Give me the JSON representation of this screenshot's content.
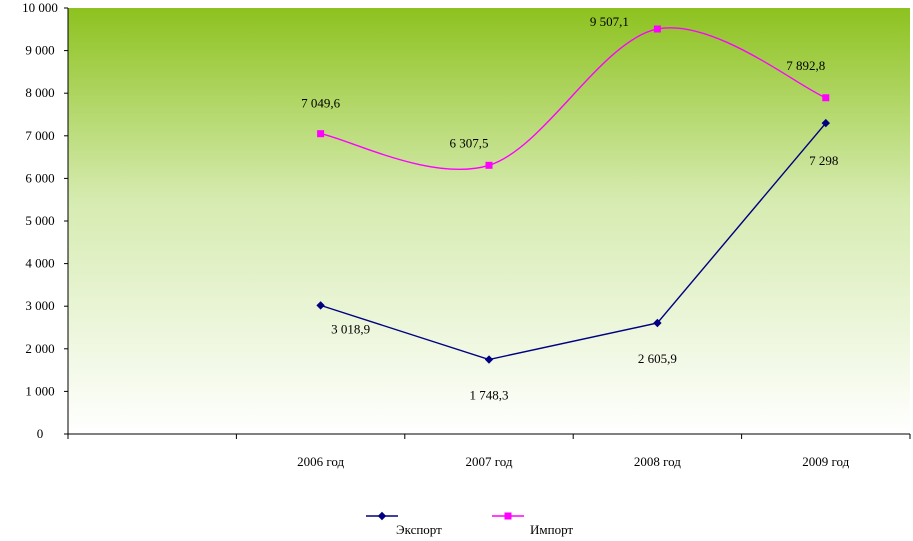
{
  "chart_data": {
    "type": "line",
    "categories": [
      "2006 год",
      "2007 год",
      "2008 год",
      "2009 год"
    ],
    "ylim": [
      0,
      10000
    ],
    "yticks": [
      0,
      1000,
      2000,
      3000,
      4000,
      5000,
      6000,
      7000,
      8000,
      9000,
      10000
    ],
    "ytick_labels": [
      "0",
      "1 000",
      "2 000",
      "3 000",
      "4 000",
      "5 000",
      "6 000",
      "7 000",
      "8 000",
      "9 000",
      "10 000"
    ],
    "grid": false,
    "legend": "bottom",
    "series": [
      {
        "name": "Экспорт",
        "values": [
          3018.9,
          1748.3,
          2605.9,
          7298
        ],
        "labels": [
          "3 018,9",
          "1 748,3",
          "2 605,9",
          "7 298"
        ],
        "color": "#000080",
        "marker": "diamond",
        "smooth": false
      },
      {
        "name": "Импорт",
        "values": [
          7049.6,
          6307.5,
          9507.1,
          7892.8
        ],
        "labels": [
          "7 049,6",
          "6 307,5",
          "9 507,1",
          "7 892,8"
        ],
        "color": "#ff00ff",
        "marker": "square",
        "smooth": true
      }
    ],
    "background_gradient": [
      "#8dc21f",
      "#ffffff"
    ]
  }
}
